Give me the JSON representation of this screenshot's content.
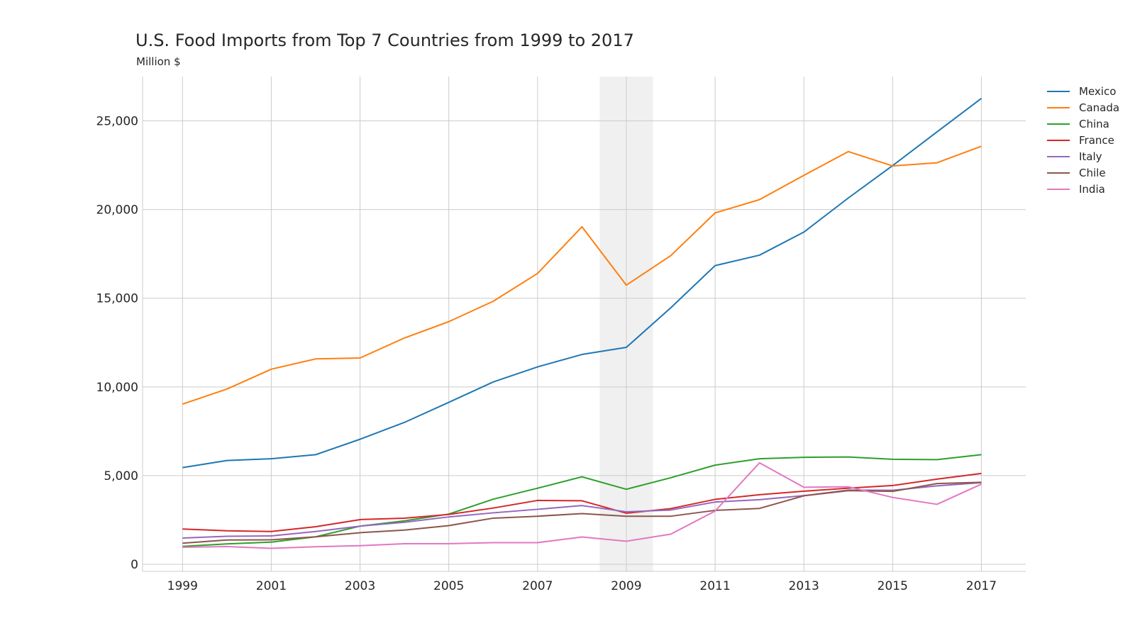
{
  "chart_data": {
    "type": "line",
    "title": "U.S. Food Imports from Top 7 Countries from 1999 to 2017",
    "subtitle": "Million $",
    "xlabel": "",
    "ylabel": "",
    "x": [
      1999,
      2000,
      2001,
      2002,
      2003,
      2004,
      2005,
      2006,
      2007,
      2008,
      2009,
      2010,
      2011,
      2012,
      2013,
      2014,
      2015,
      2016,
      2017
    ],
    "xlim": [
      1998.1,
      2018
    ],
    "ylim": [
      -400,
      27500
    ],
    "x_ticks": [
      "1999",
      "2001",
      "2003",
      "2005",
      "2007",
      "2009",
      "2011",
      "2013",
      "2015",
      "2017"
    ],
    "y_ticks": [
      0,
      5000,
      10000,
      15000,
      20000,
      25000
    ],
    "y_tick_labels": [
      "0",
      "5,000",
      "10,000",
      "15,000",
      "20,000",
      "25,000"
    ],
    "grid": true,
    "legend_position": "top-right outside",
    "shaded_region": {
      "x_start": 2008.4,
      "x_end": 2009.6,
      "color": "#f0f0f0"
    },
    "series": [
      {
        "name": "Mexico",
        "color": "#1f77b4",
        "values": [
          5450,
          5850,
          5950,
          6180,
          7050,
          8000,
          9130,
          10280,
          11130,
          11830,
          12230,
          14460,
          16840,
          17430,
          18730,
          20650,
          22480,
          24380,
          26270
        ]
      },
      {
        "name": "Canada",
        "color": "#ff7f0e",
        "values": [
          9030,
          9880,
          11000,
          11580,
          11630,
          12760,
          13680,
          14830,
          16400,
          19030,
          15740,
          17400,
          19810,
          20560,
          21930,
          23270,
          22460,
          22640,
          23570
        ]
      },
      {
        "name": "China",
        "color": "#2ca02c",
        "values": [
          1010,
          1150,
          1250,
          1550,
          2150,
          2450,
          2830,
          3670,
          4290,
          4930,
          4230,
          4880,
          5590,
          5950,
          6030,
          6050,
          5920,
          5900,
          6180
        ]
      },
      {
        "name": "France",
        "color": "#d62728",
        "values": [
          1990,
          1890,
          1850,
          2120,
          2520,
          2600,
          2810,
          3170,
          3600,
          3580,
          2880,
          3140,
          3660,
          3920,
          4120,
          4290,
          4440,
          4800,
          5120
        ]
      },
      {
        "name": "Italy",
        "color": "#9467bd",
        "values": [
          1480,
          1580,
          1600,
          1850,
          2150,
          2370,
          2670,
          2900,
          3100,
          3310,
          2960,
          3060,
          3510,
          3640,
          3870,
          4180,
          4170,
          4420,
          4600
        ]
      },
      {
        "name": "Chile",
        "color": "#8c564b",
        "values": [
          1190,
          1370,
          1380,
          1550,
          1780,
          1930,
          2180,
          2600,
          2710,
          2860,
          2710,
          2710,
          3040,
          3150,
          3860,
          4150,
          4110,
          4550,
          4620
        ]
      },
      {
        "name": "India",
        "color": "#e377c2",
        "values": [
          960,
          1000,
          900,
          990,
          1050,
          1160,
          1160,
          1220,
          1220,
          1540,
          1300,
          1700,
          3000,
          5720,
          4340,
          4370,
          3770,
          3380,
          4520
        ]
      }
    ]
  }
}
